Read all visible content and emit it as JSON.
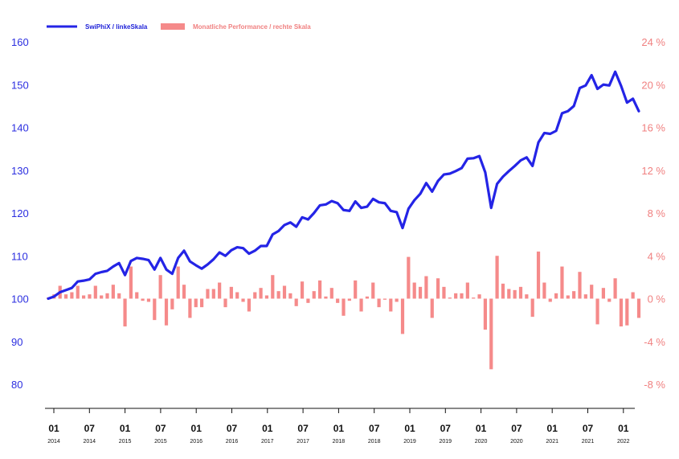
{
  "colors": {
    "line": "#2424e6",
    "bars": "#f58a8a",
    "axis": "#111111"
  },
  "chart_data": {
    "type": "line+bar",
    "title": "",
    "grid": false,
    "legend_position": "top-left",
    "series": [
      {
        "name": "SwiPhiX / linkeSkala",
        "type": "line",
        "axis": "left",
        "values": [
          100.0,
          100.5,
          101.5,
          102.0,
          102.5,
          104.0,
          104.2,
          104.5,
          105.8,
          106.2,
          106.5,
          107.5,
          108.3,
          105.5,
          108.8,
          109.5,
          109.3,
          109.0,
          106.8,
          109.5,
          106.8,
          105.8,
          109.5,
          111.2,
          108.7,
          107.8,
          107.0,
          108.0,
          109.2,
          110.8,
          110.0,
          111.3,
          112.0,
          111.8,
          110.5,
          111.2,
          112.3,
          112.3,
          115.0,
          115.8,
          117.2,
          117.8,
          116.8,
          119.0,
          118.5,
          120.0,
          121.8,
          122.0,
          122.8,
          122.3,
          120.7,
          120.5,
          122.7,
          121.2,
          121.5,
          123.3,
          122.5,
          122.3,
          120.5,
          120.2,
          116.5,
          121.0,
          123.0,
          124.5,
          127.0,
          125.0,
          127.5,
          129.0,
          129.2,
          129.8,
          130.5,
          132.7,
          132.8,
          133.3,
          129.5,
          121.2,
          126.8,
          128.5,
          129.8,
          131.0,
          132.3,
          133.0,
          131.0,
          136.5,
          138.7,
          138.5,
          139.2,
          143.3,
          143.8,
          145.0,
          149.2,
          149.8,
          152.2,
          149.0,
          150.0,
          149.8,
          153.0,
          149.7,
          145.8,
          146.7,
          143.8
        ]
      },
      {
        "name": "Monatliche Performance / rechte Skala",
        "type": "bar",
        "axis": "right",
        "values": [
          0.1,
          0.4,
          1.2,
          0.4,
          0.6,
          1.2,
          0.3,
          0.4,
          1.2,
          0.3,
          0.5,
          1.3,
          0.5,
          -2.6,
          3.0,
          0.6,
          -0.2,
          -0.3,
          -2.0,
          2.2,
          -2.5,
          -1.0,
          3.0,
          1.3,
          -1.8,
          -0.8,
          -0.8,
          0.9,
          0.9,
          1.5,
          -0.8,
          1.1,
          0.6,
          -0.3,
          -1.2,
          0.6,
          1.0,
          0.3,
          2.2,
          0.7,
          1.2,
          0.5,
          -0.7,
          1.6,
          -0.4,
          0.7,
          1.7,
          0.2,
          1.0,
          -0.4,
          -1.6,
          -0.2,
          1.7,
          -1.2,
          0.2,
          1.5,
          -0.8,
          -0.1,
          -1.2,
          -0.3,
          -3.3,
          3.9,
          1.5,
          1.1,
          2.1,
          -1.8,
          1.9,
          1.1,
          0.1,
          0.5,
          0.5,
          1.5,
          0.1,
          0.4,
          -2.9,
          -6.6,
          4.0,
          1.4,
          0.9,
          0.8,
          1.1,
          0.4,
          -1.7,
          4.4,
          1.5,
          -0.3,
          0.5,
          3.0,
          0.3,
          0.7,
          2.5,
          0.4,
          1.3,
          -2.4,
          1.0,
          -0.3,
          1.9,
          -2.6,
          -2.5,
          0.6,
          -1.8
        ]
      }
    ],
    "x_axis": {
      "ticks": [
        {
          "month": "01",
          "year": "2014"
        },
        {
          "month": "07",
          "year": "2014"
        },
        {
          "month": "01",
          "year": "2015"
        },
        {
          "month": "07",
          "year": "2015"
        },
        {
          "month": "01",
          "year": "2016"
        },
        {
          "month": "07",
          "year": "2016"
        },
        {
          "month": "01",
          "year": "2017"
        },
        {
          "month": "07",
          "year": "2017"
        },
        {
          "month": "01",
          "year": "2018"
        },
        {
          "month": "07",
          "year": "2018"
        },
        {
          "month": "01",
          "year": "2019"
        },
        {
          "month": "07",
          "year": "2019"
        },
        {
          "month": "01",
          "year": "2020"
        },
        {
          "month": "07",
          "year": "2020"
        },
        {
          "month": "01",
          "year": "2021"
        },
        {
          "month": "07",
          "year": "2021"
        },
        {
          "month": "01",
          "year": "2022"
        }
      ]
    },
    "y_left": {
      "ticks": [
        "160",
        "150",
        "140",
        "130",
        "120",
        "110",
        "100",
        "90",
        "80"
      ],
      "range": [
        80,
        160
      ]
    },
    "y_right": {
      "ticks": [
        "24 %",
        "20 %",
        "16 %",
        "12 %",
        "8 %",
        "4 %",
        "0 %",
        "-4 %",
        "-8 %"
      ],
      "range": [
        -8,
        24
      ]
    }
  }
}
